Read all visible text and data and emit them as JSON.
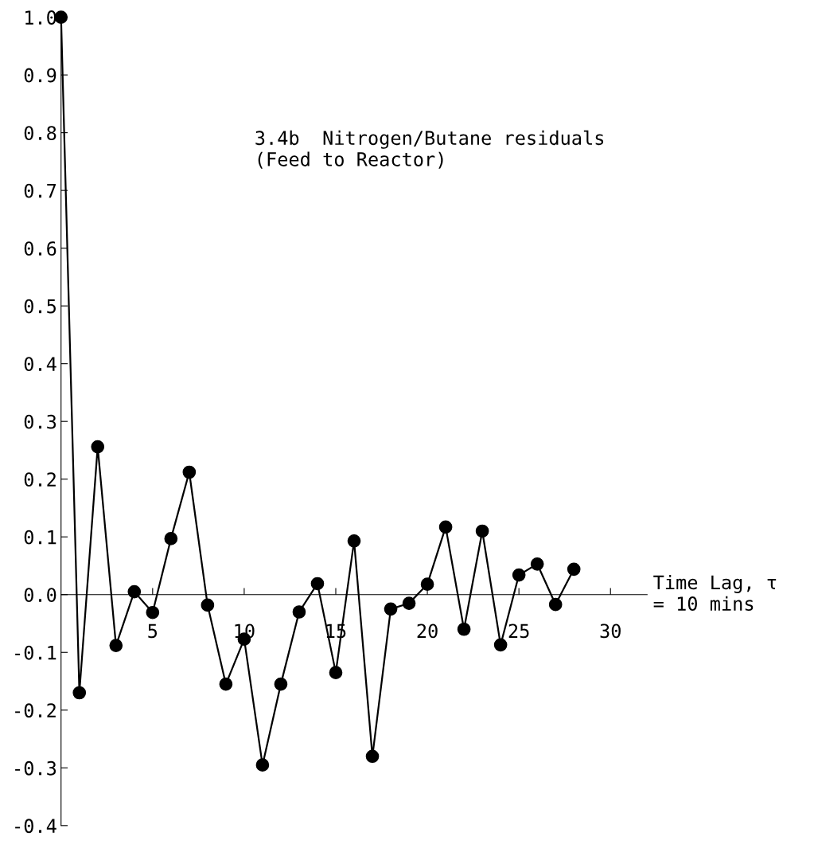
{
  "chart_data": {
    "type": "line",
    "title": "3.4b  Nitrogen/Butane residuals\n(Feed to Reactor)",
    "xlabel": "Time Lag, τ\n= 10 mins",
    "x": [
      0,
      1,
      2,
      3,
      4,
      5,
      6,
      7,
      8,
      9,
      10,
      11,
      12,
      13,
      14,
      15,
      16,
      17,
      18,
      19,
      20,
      21,
      22,
      23,
      24,
      25,
      26,
      27,
      28
    ],
    "series": [
      {
        "color": "#000000",
        "values": [
          1.0,
          -0.17,
          0.256,
          -0.088,
          0.005,
          -0.031,
          0.097,
          0.212,
          -0.018,
          -0.155,
          -0.077,
          -0.295,
          -0.155,
          -0.03,
          0.019,
          -0.135,
          0.093,
          -0.28,
          -0.025,
          -0.015,
          0.018,
          0.117,
          -0.06,
          0.11,
          -0.087,
          0.034,
          0.053,
          -0.017,
          0.044
        ]
      }
    ],
    "xlim": [
      0,
      32
    ],
    "xticks": [
      5,
      10,
      15,
      20,
      25,
      30
    ],
    "ylim": [
      -0.4,
      1.0
    ],
    "yticks": [
      -0.4,
      -0.3,
      -0.2,
      -0.1,
      {
        "value": 0,
        "label": "0.0"
      },
      0.1,
      0.2,
      0.3,
      0.4,
      0.5,
      0.6,
      0.7,
      0.8,
      0.9,
      {
        "value": 1,
        "label": "1.0"
      }
    ],
    "grid": false,
    "legend": false,
    "marker": "circle",
    "line_style": "solid"
  }
}
